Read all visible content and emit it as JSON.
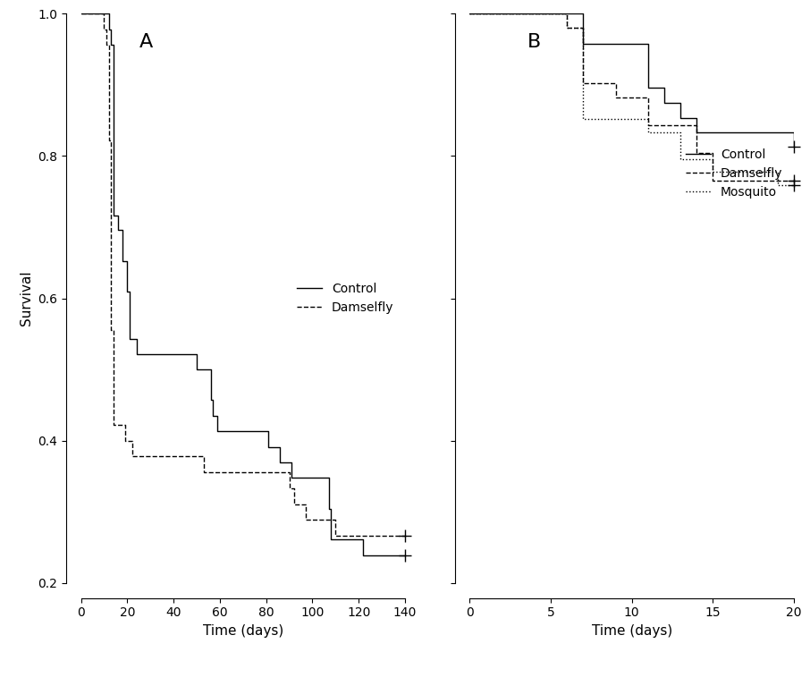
{
  "chart_data": [
    {
      "type": "line",
      "title": "A",
      "x_label": "Time (days)",
      "y_label": "Survival",
      "xlim": [
        0,
        140
      ],
      "ylim": [
        0.2,
        1.0
      ],
      "xticks": [
        0,
        20,
        40,
        60,
        80,
        100,
        120,
        140
      ],
      "yticks": [
        0.2,
        0.4,
        0.6,
        0.8,
        1.0
      ],
      "legend": "center right",
      "series": [
        {
          "name": "Control",
          "color": "#000000",
          "line_style": "solid",
          "x": [
            0,
            12,
            13,
            14,
            16,
            18,
            20,
            21,
            24,
            50,
            56,
            57,
            59,
            81,
            86,
            91,
            107,
            108,
            122,
            140
          ],
          "values": [
            1.0,
            0.978,
            0.956,
            0.717,
            0.696,
            0.652,
            0.609,
            0.543,
            0.522,
            0.5,
            0.457,
            0.435,
            0.413,
            0.391,
            0.37,
            0.348,
            0.304,
            0.261,
            0.239,
            0.239
          ]
        },
        {
          "name": "Damselfly",
          "color": "#000000",
          "line_style": "dashed",
          "x": [
            0,
            10,
            11,
            12,
            13,
            14,
            19,
            22,
            53,
            90,
            92,
            97,
            110,
            140
          ],
          "values": [
            1.0,
            0.978,
            0.956,
            0.822,
            0.556,
            0.422,
            0.4,
            0.378,
            0.356,
            0.333,
            0.311,
            0.289,
            0.267,
            0.267
          ]
        }
      ]
    },
    {
      "type": "line",
      "title": "B",
      "x_label": "Time (days)",
      "xlim": [
        0,
        20
      ],
      "ylim": [
        0.2,
        1.0
      ],
      "xticks": [
        0,
        5,
        10,
        15,
        20
      ],
      "yticks": [
        0.2,
        0.4,
        0.6,
        0.8,
        1.0
      ],
      "tick_labels": "x",
      "legend": "center right",
      "series": [
        {
          "name": "Control",
          "color": "#000000",
          "line_style": "solid",
          "x": [
            0,
            7,
            11,
            12,
            13,
            14,
            20
          ],
          "values": [
            1.0,
            0.958,
            0.896,
            0.875,
            0.854,
            0.833,
            0.813
          ]
        },
        {
          "name": "Damselfly",
          "color": "#000000",
          "line_style": "dashed",
          "x": [
            0,
            6,
            7,
            9,
            11,
            14,
            15,
            20
          ],
          "values": [
            1.0,
            0.98,
            0.902,
            0.882,
            0.843,
            0.804,
            0.765,
            0.765
          ]
        },
        {
          "name": "Mosquito",
          "color": "#000000",
          "line_style": "dotted",
          "x": [
            0,
            6,
            7,
            11,
            13,
            15,
            19,
            20
          ],
          "values": [
            1.0,
            0.98,
            0.852,
            0.833,
            0.796,
            0.778,
            0.759,
            0.759
          ]
        }
      ]
    }
  ]
}
